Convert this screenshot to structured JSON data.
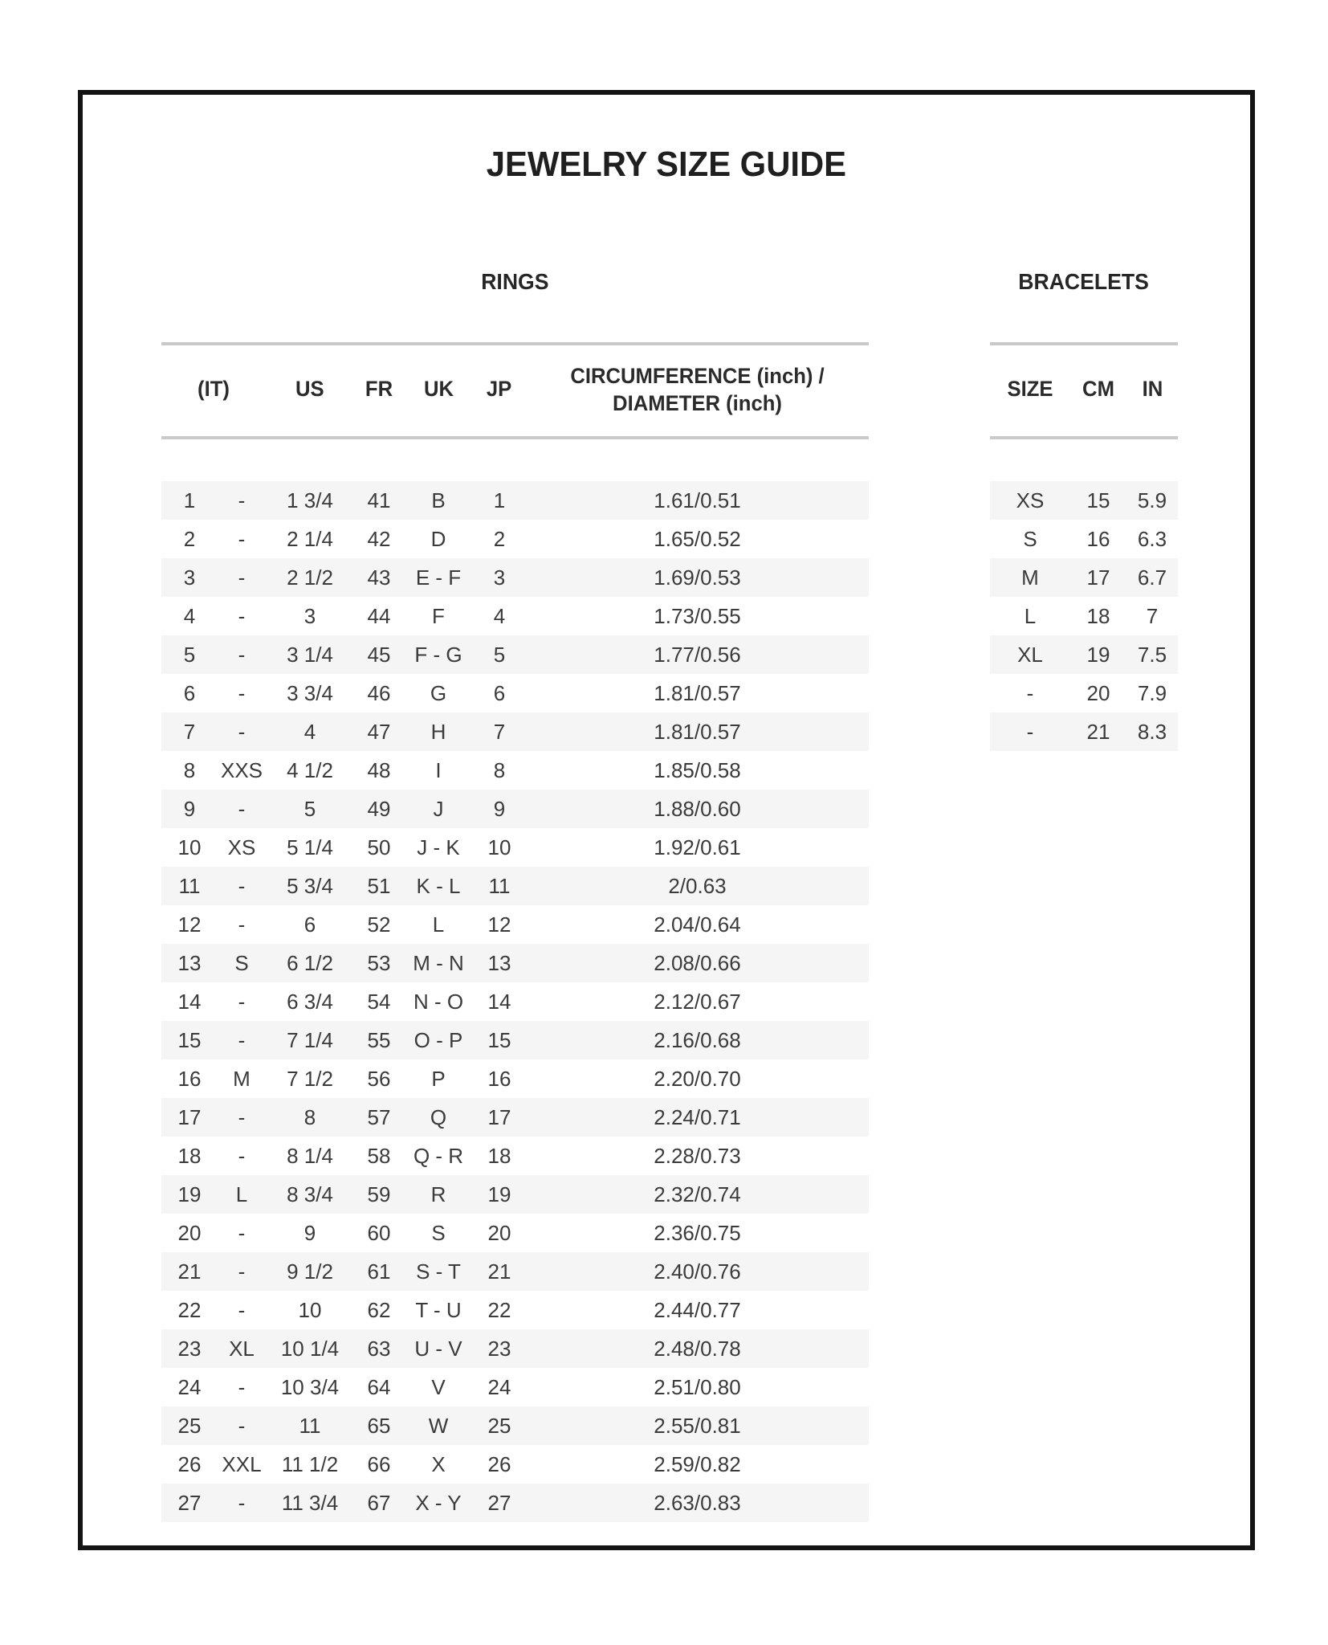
{
  "page": {
    "title": "JEWELRY SIZE GUIDE"
  },
  "rings": {
    "section_title": "RINGS",
    "headers": {
      "it": "(IT)",
      "us": "US",
      "fr": "FR",
      "uk": "UK",
      "jp": "JP",
      "circumference_line1": "CIRCUMFERENCE (inch) /",
      "circumference_line2": "DIAMETER (inch)"
    },
    "rows": [
      [
        "1",
        "-",
        "1 3/4",
        "41",
        "B",
        "1",
        "1.61/0.51"
      ],
      [
        "2",
        "-",
        "2 1/4",
        "42",
        "D",
        "2",
        "1.65/0.52"
      ],
      [
        "3",
        "-",
        "2 1/2",
        "43",
        "E - F",
        "3",
        "1.69/0.53"
      ],
      [
        "4",
        "-",
        "3",
        "44",
        "F",
        "4",
        "1.73/0.55"
      ],
      [
        "5",
        "-",
        "3 1/4",
        "45",
        "F - G",
        "5",
        "1.77/0.56"
      ],
      [
        "6",
        "-",
        "3 3/4",
        "46",
        "G",
        "6",
        "1.81/0.57"
      ],
      [
        "7",
        "-",
        "4",
        "47",
        "H",
        "7",
        "1.81/0.57"
      ],
      [
        "8",
        "XXS",
        "4 1/2",
        "48",
        "I",
        "8",
        "1.85/0.58"
      ],
      [
        "9",
        "-",
        "5",
        "49",
        "J",
        "9",
        "1.88/0.60"
      ],
      [
        "10",
        "XS",
        "5 1/4",
        "50",
        "J - K",
        "10",
        "1.92/0.61"
      ],
      [
        "11",
        "-",
        "5 3/4",
        "51",
        "K - L",
        "11",
        "2/0.63"
      ],
      [
        "12",
        "-",
        "6",
        "52",
        "L",
        "12",
        "2.04/0.64"
      ],
      [
        "13",
        "S",
        "6 1/2",
        "53",
        "M - N",
        "13",
        "2.08/0.66"
      ],
      [
        "14",
        "-",
        "6 3/4",
        "54",
        "N - O",
        "14",
        "2.12/0.67"
      ],
      [
        "15",
        "-",
        "7 1/4",
        "55",
        "O - P",
        "15",
        "2.16/0.68"
      ],
      [
        "16",
        "M",
        "7 1/2",
        "56",
        "P",
        "16",
        "2.20/0.70"
      ],
      [
        "17",
        "-",
        "8",
        "57",
        "Q",
        "17",
        "2.24/0.71"
      ],
      [
        "18",
        "-",
        "8 1/4",
        "58",
        "Q - R",
        "18",
        "2.28/0.73"
      ],
      [
        "19",
        "L",
        "8 3/4",
        "59",
        "R",
        "19",
        "2.32/0.74"
      ],
      [
        "20",
        "-",
        "9",
        "60",
        "S",
        "20",
        "2.36/0.75"
      ],
      [
        "21",
        "-",
        "9 1/2",
        "61",
        "S - T",
        "21",
        "2.40/0.76"
      ],
      [
        "22",
        "-",
        "10",
        "62",
        "T - U",
        "22",
        "2.44/0.77"
      ],
      [
        "23",
        "XL",
        "10 1/4",
        "63",
        "U - V",
        "23",
        "2.48/0.78"
      ],
      [
        "24",
        "-",
        "10 3/4",
        "64",
        "V",
        "24",
        "2.51/0.80"
      ],
      [
        "25",
        "-",
        "11",
        "65",
        "W",
        "25",
        "2.55/0.81"
      ],
      [
        "26",
        "XXL",
        "11 1/2",
        "66",
        "X",
        "26",
        "2.59/0.82"
      ],
      [
        "27",
        "-",
        "11 3/4",
        "67",
        "X - Y",
        "27",
        "2.63/0.83"
      ]
    ]
  },
  "bracelets": {
    "section_title": "BRACELETS",
    "headers": {
      "size": "SIZE",
      "cm": "CM",
      "in": "IN"
    },
    "rows": [
      [
        "XS",
        "15",
        "5.9"
      ],
      [
        "S",
        "16",
        "6.3"
      ],
      [
        "M",
        "17",
        "6.7"
      ],
      [
        "L",
        "18",
        "7"
      ],
      [
        "XL",
        "19",
        "7.5"
      ],
      [
        "-",
        "20",
        "7.9"
      ],
      [
        "-",
        "21",
        "8.3"
      ]
    ]
  },
  "colors": {
    "stripe": "#f5f5f5",
    "rule": "#c9c9c9",
    "text": "#3b3b3b",
    "heading": "#262626",
    "frame_border": "#141414"
  }
}
